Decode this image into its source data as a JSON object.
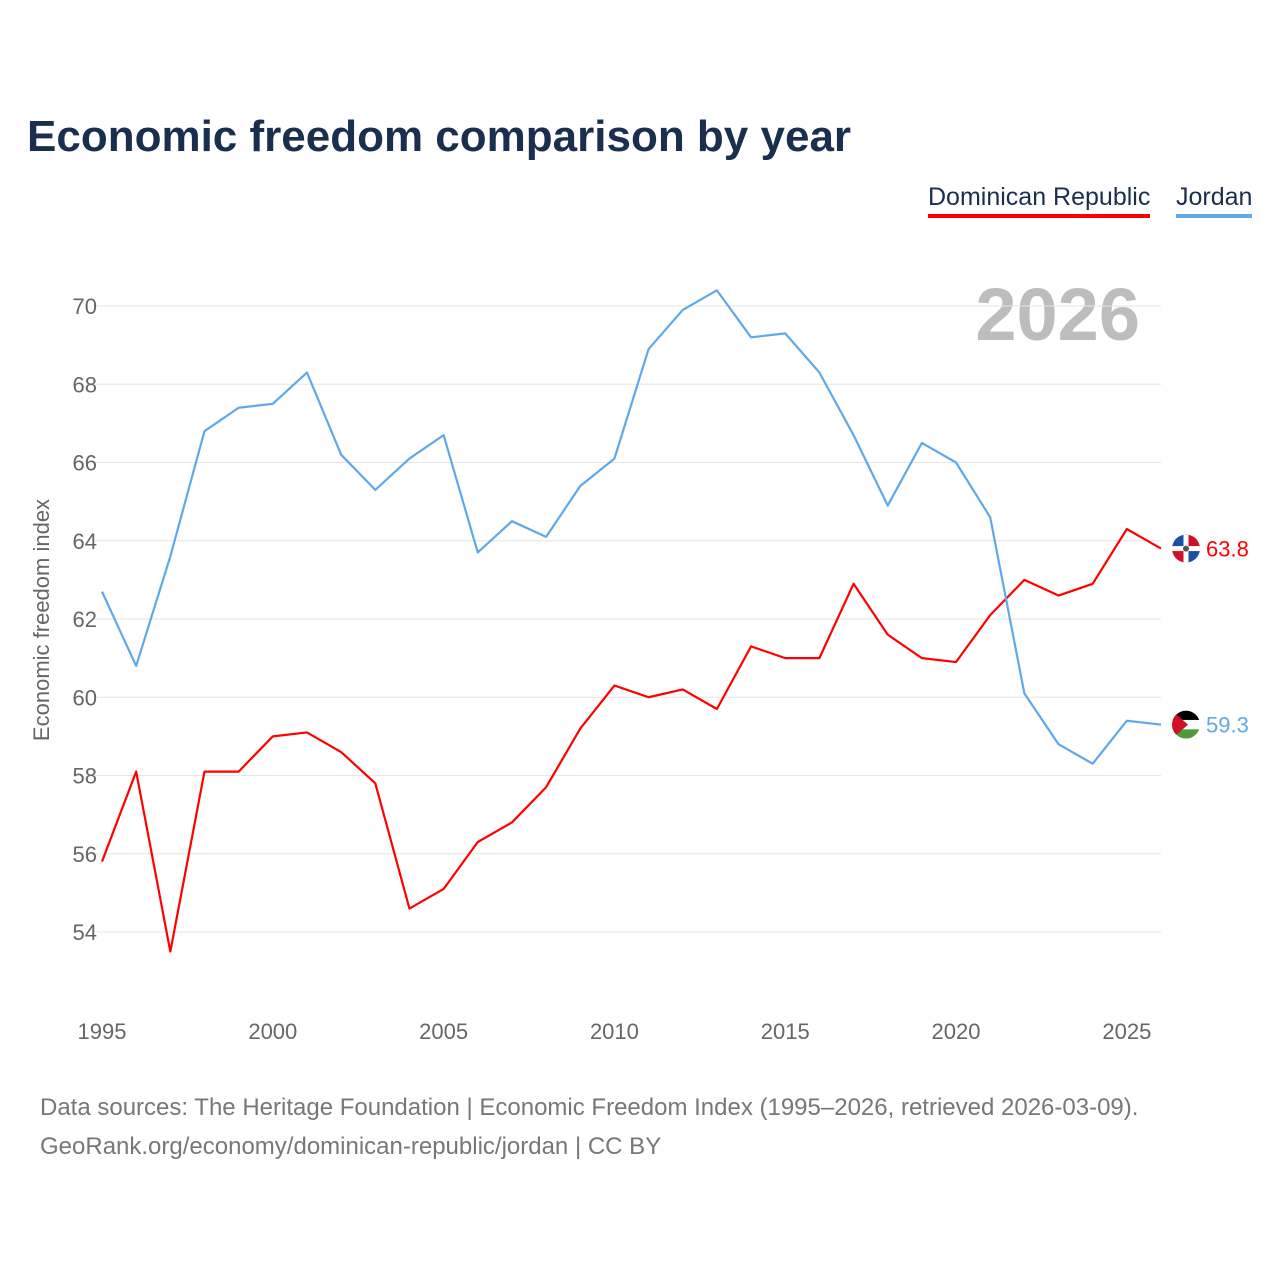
{
  "chart_data": {
    "type": "line",
    "title": "Economic freedom comparison by year",
    "xlabel": "",
    "ylabel": "Economic freedom index",
    "xlim": [
      1995,
      2026
    ],
    "ylim": [
      53,
      71
    ],
    "x_ticks": [
      1995,
      2000,
      2005,
      2010,
      2015,
      2020,
      2025
    ],
    "y_ticks": [
      54,
      56,
      58,
      60,
      62,
      64,
      66,
      68,
      70
    ],
    "grid": true,
    "legend_placement": "top-right",
    "highlight_year": "2026",
    "x": [
      1995,
      1996,
      1997,
      1998,
      1999,
      2000,
      2001,
      2002,
      2003,
      2004,
      2005,
      2006,
      2007,
      2008,
      2009,
      2010,
      2011,
      2012,
      2013,
      2014,
      2015,
      2016,
      2017,
      2018,
      2019,
      2020,
      2021,
      2022,
      2023,
      2024,
      2025,
      2026
    ],
    "series": [
      {
        "name": "Dominican Republic",
        "color": "#ff0000",
        "end_label": "63.8",
        "values": [
          55.8,
          58.1,
          53.5,
          58.1,
          58.1,
          59.0,
          59.1,
          58.6,
          57.8,
          54.6,
          55.1,
          56.3,
          56.8,
          57.7,
          59.2,
          60.3,
          60.0,
          60.2,
          59.7,
          61.3,
          61.0,
          61.0,
          62.9,
          61.6,
          61.0,
          60.9,
          62.1,
          63.0,
          62.6,
          62.9,
          64.3,
          63.8
        ]
      },
      {
        "name": "Jordan",
        "color": "#60a8e8",
        "end_label": "59.3",
        "values": [
          62.7,
          60.8,
          63.6,
          66.8,
          67.4,
          67.5,
          68.3,
          66.2,
          65.3,
          66.1,
          66.7,
          63.7,
          64.5,
          64.1,
          65.4,
          66.1,
          68.9,
          69.9,
          70.4,
          69.2,
          69.3,
          68.3,
          66.7,
          64.9,
          66.5,
          66.0,
          64.6,
          60.1,
          58.8,
          58.3,
          59.4,
          59.3
        ]
      }
    ]
  },
  "footer": {
    "line1": "Data sources: The Heritage Foundation | Economic Freedom Index (1995–2026, retrieved 2026-03-09).",
    "line2": "GeoRank.org/economy/dominican-republic/jordan | CC BY"
  }
}
